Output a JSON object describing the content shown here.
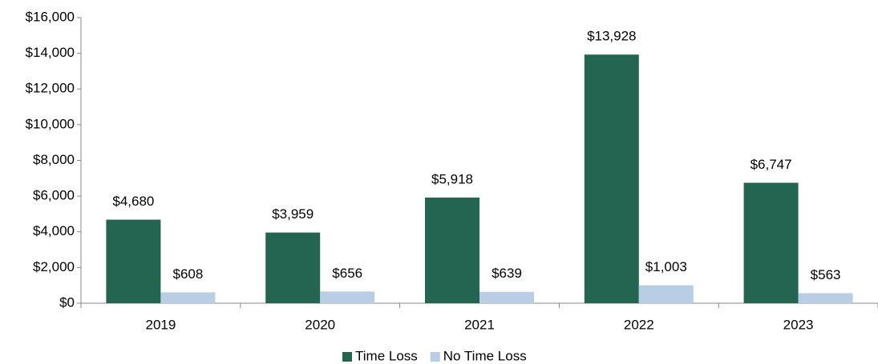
{
  "chart_data": {
    "type": "bar",
    "categories": [
      "2019",
      "2020",
      "2021",
      "2022",
      "2023"
    ],
    "series": [
      {
        "name": "Time Loss",
        "color": "#236550",
        "values": [
          4680,
          3959,
          5918,
          13928,
          6747
        ],
        "value_labels": [
          "$4,680",
          "$3,959",
          "$5,918",
          "$13,928",
          "$6,747"
        ]
      },
      {
        "name": "No Time Loss",
        "color": "#b9cde5",
        "values": [
          608,
          656,
          639,
          1003,
          563
        ],
        "value_labels": [
          "$608",
          "$656",
          "$639",
          "$1,003",
          "$563"
        ]
      }
    ],
    "ylim": [
      0,
      16000
    ],
    "yticks": [
      {
        "value": 0,
        "label": "$0"
      },
      {
        "value": 2000,
        "label": "$2,000"
      },
      {
        "value": 4000,
        "label": "$4,000"
      },
      {
        "value": 6000,
        "label": "$6,000"
      },
      {
        "value": 8000,
        "label": "$8,000"
      },
      {
        "value": 10000,
        "label": "$10,000"
      },
      {
        "value": 12000,
        "label": "$12,000"
      },
      {
        "value": 14000,
        "label": "$14,000"
      },
      {
        "value": 16000,
        "label": "$16,000"
      }
    ],
    "grid": false,
    "legend": "bottom"
  }
}
